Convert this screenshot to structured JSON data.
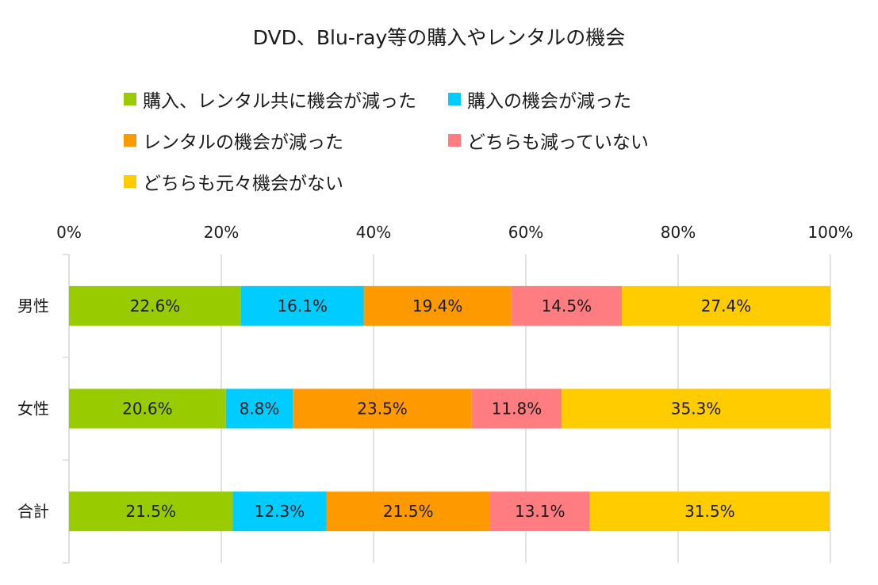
{
  "chart_data": {
    "type": "bar",
    "orientation": "horizontal",
    "stacked": "percent",
    "title": "DVD、Blu-ray等の購入やレンタルの機会",
    "categories": [
      "男性",
      "女性",
      "合計"
    ],
    "series": [
      {
        "name": "購入、レンタル共に機会が減った",
        "color": "#99cc00",
        "values": [
          22.6,
          20.6,
          21.5
        ]
      },
      {
        "name": "購入の機会が減った",
        "color": "#00ccff",
        "values": [
          16.1,
          8.8,
          12.3
        ]
      },
      {
        "name": "レンタルの機会が減った",
        "color": "#ff9900",
        "values": [
          19.4,
          23.5,
          21.5
        ]
      },
      {
        "name": "どちらも減っていない",
        "color": "#ff7c80",
        "values": [
          14.5,
          11.8,
          13.1
        ]
      },
      {
        "name": "どちらも元々機会がない",
        "color": "#ffcc00",
        "values": [
          27.4,
          35.3,
          31.5
        ]
      }
    ],
    "x_ticks": [
      "0%",
      "20%",
      "40%",
      "60%",
      "80%",
      "100%"
    ],
    "xlim": [
      0,
      100
    ],
    "data_label_suffix": "%",
    "legend_position": "top",
    "grid": true
  }
}
